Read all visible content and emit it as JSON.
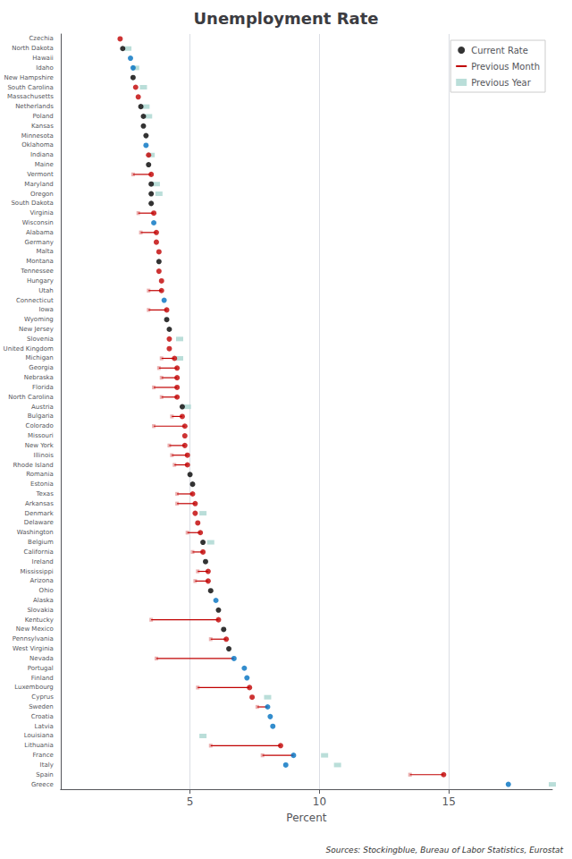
{
  "chart_data": {
    "type": "dot",
    "orientation": "horizontal",
    "title": "Unemployment Rate",
    "xlabel": "Percent",
    "annotations": [
      "Sources: Stockingblue, Bureau of Labor Statistics, Eurostat"
    ],
    "xlim": [
      0,
      19
    ],
    "xticks": [
      5,
      10,
      15
    ],
    "grid": true,
    "legend": "upper right",
    "categories": [
      "Czechia",
      "North Dakota",
      "Hawaii",
      "Idaho",
      "New Hampshire",
      "South Carolina",
      "Massachusetts",
      "Netherlands",
      "Poland",
      "Kansas",
      "Minnesota",
      "Oklahoma",
      "Indiana",
      "Maine",
      "Vermont",
      "Maryland",
      "Oregon",
      "South Dakota",
      "Virginia",
      "Wisconsin",
      "Alabama",
      "Germany",
      "Malta",
      "Montana",
      "Tennessee",
      "Hungary",
      "Utah",
      "Connecticut",
      "Iowa",
      "Wyoming",
      "New Jersey",
      "Slovenia",
      "United Kingdom",
      "Michigan",
      "Georgia",
      "Nebraska",
      "Florida",
      "North Carolina",
      "Austria",
      "Bulgaria",
      "Colorado",
      "Missouri",
      "New York",
      "Illinois",
      "Rhode Island",
      "Romania",
      "Estonia",
      "Texas",
      "Arkansas",
      "Denmark",
      "Delaware",
      "Washington",
      "Belgium",
      "California",
      "Ireland",
      "Mississippi",
      "Arizona",
      "Ohio",
      "Alaska",
      "Slovakia",
      "Kentucky",
      "New Mexico",
      "Pennsylvania",
      "West Virginia",
      "Nevada",
      "Portugal",
      "Finland",
      "Luxembourg",
      "Cyprus",
      "Sweden",
      "Croatia",
      "Latvia",
      "Louisiana",
      "Lithuania",
      "France",
      "Italy",
      "Spain",
      "Greece"
    ],
    "series": [
      {
        "name": "Current Rate",
        "type": "scatter",
        "marker": "circle",
        "color": "#000000",
        "colors": [
          "#c00000",
          "#000000",
          "#0070c0",
          "#0070c0",
          "#000000",
          "#c00000",
          "#c00000",
          "#000000",
          "#000000",
          "#000000",
          "#000000",
          "#0070c0",
          "#c00000",
          "#000000",
          "#c00000",
          "#000000",
          "#000000",
          "#000000",
          "#c00000",
          "#0070c0",
          "#c00000",
          "#c00000",
          "#c00000",
          "#000000",
          "#c00000",
          "#c00000",
          "#c00000",
          "#0070c0",
          "#c00000",
          "#000000",
          "#000000",
          "#c00000",
          "#c00000",
          "#c00000",
          "#c00000",
          "#c00000",
          "#c00000",
          "#c00000",
          "#000000",
          "#c00000",
          "#c00000",
          "#c00000",
          "#c00000",
          "#c00000",
          "#c00000",
          "#000000",
          "#000000",
          "#c00000",
          "#c00000",
          "#c00000",
          "#c00000",
          "#c00000",
          "#000000",
          "#c00000",
          "#000000",
          "#c00000",
          "#c00000",
          "#000000",
          "#0070c0",
          "#000000",
          "#c00000",
          "#000000",
          "#c00000",
          "#000000",
          "#0070c0",
          "#0070c0",
          "#0070c0",
          "#c00000",
          "#c00000",
          "#0070c0",
          "#0070c0",
          "#0070c0",
          "#000000",
          "#c00000",
          "#0070c0",
          "#0070c0",
          "#c00000",
          "#0070c0"
        ],
        "values": [
          2.3,
          2.4,
          2.7,
          2.8,
          2.8,
          2.9,
          3.0,
          3.1,
          3.2,
          3.2,
          3.3,
          3.3,
          3.4,
          3.4,
          3.5,
          3.5,
          3.5,
          3.5,
          3.6,
          3.6,
          3.7,
          3.7,
          3.8,
          3.8,
          3.8,
          3.9,
          3.9,
          4.0,
          4.1,
          4.1,
          4.2,
          4.2,
          4.2,
          4.4,
          4.5,
          4.5,
          4.5,
          4.5,
          4.7,
          4.7,
          4.8,
          4.8,
          4.8,
          4.9,
          4.9,
          5.0,
          5.1,
          5.1,
          5.2,
          5.2,
          5.3,
          5.4,
          5.5,
          5.5,
          5.6,
          5.7,
          5.7,
          5.8,
          6.0,
          6.1,
          6.1,
          6.3,
          6.4,
          6.5,
          6.7,
          7.1,
          7.2,
          7.3,
          7.4,
          8.0,
          8.1,
          8.2,
          null,
          8.5,
          9.0,
          8.7,
          14.8,
          17.3
        ]
      },
      {
        "name": "Previous Month",
        "type": "line",
        "color": "#c00000",
        "values": [
          null,
          null,
          null,
          null,
          null,
          null,
          null,
          null,
          null,
          null,
          null,
          null,
          null,
          null,
          2.8,
          null,
          null,
          null,
          3.0,
          null,
          3.1,
          null,
          null,
          null,
          null,
          null,
          3.4,
          null,
          3.4,
          null,
          null,
          null,
          null,
          3.9,
          3.8,
          3.9,
          3.6,
          3.9,
          null,
          4.3,
          3.6,
          null,
          4.2,
          4.3,
          4.4,
          null,
          null,
          4.5,
          4.5,
          null,
          null,
          4.9,
          null,
          5.1,
          null,
          5.3,
          5.2,
          null,
          null,
          null,
          3.5,
          null,
          5.8,
          null,
          3.7,
          null,
          null,
          5.3,
          null,
          7.6,
          null,
          null,
          null,
          5.8,
          7.8,
          null,
          13.5,
          null
        ]
      },
      {
        "name": "Previous Year",
        "type": "bar",
        "marker": "rect",
        "color": "#a9d6d0",
        "values": [
          null,
          2.6,
          null,
          2.9,
          null,
          3.2,
          null,
          3.3,
          3.4,
          null,
          null,
          null,
          3.5,
          null,
          null,
          3.7,
          3.8,
          null,
          null,
          null,
          null,
          null,
          null,
          null,
          null,
          null,
          null,
          null,
          null,
          null,
          null,
          4.6,
          null,
          4.6,
          null,
          null,
          null,
          null,
          4.9,
          null,
          null,
          null,
          null,
          null,
          null,
          null,
          null,
          null,
          null,
          5.5,
          null,
          null,
          5.8,
          null,
          null,
          null,
          null,
          null,
          null,
          null,
          null,
          null,
          null,
          null,
          null,
          null,
          null,
          null,
          8.0,
          null,
          null,
          null,
          5.5,
          null,
          10.2,
          10.7,
          null,
          19.0
        ]
      }
    ]
  }
}
